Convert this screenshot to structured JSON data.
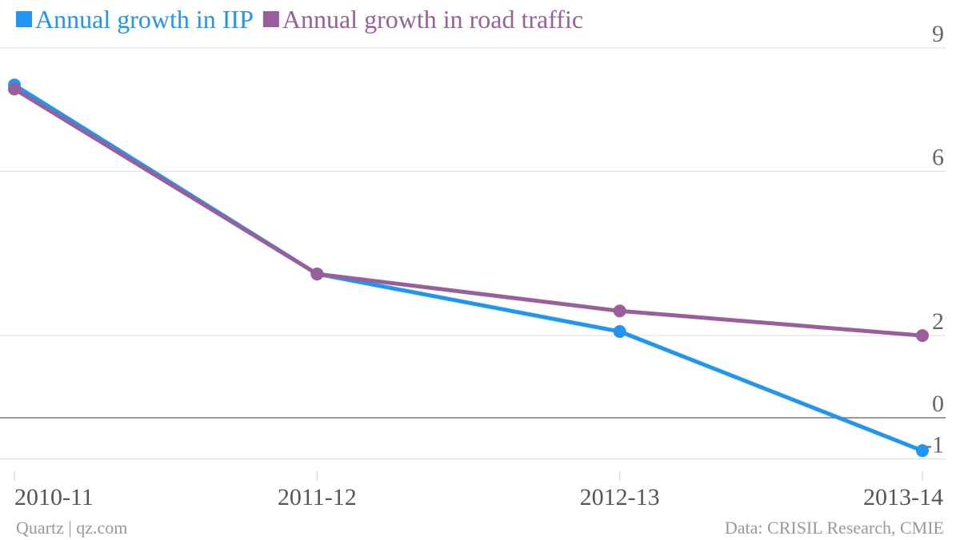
{
  "chart_data": {
    "type": "line",
    "categories": [
      "2010-11",
      "2011-12",
      "2012-13",
      "2013-14"
    ],
    "series": [
      {
        "name": "Annual growth in IIP",
        "color": "#2196f0",
        "values": [
          8.1,
          3.5,
          2.1,
          -0.8
        ]
      },
      {
        "name": "Annual growth in road traffic",
        "color": "#985f9c",
        "values": [
          8.0,
          3.5,
          2.6,
          2.0
        ]
      }
    ],
    "ylim": [
      -1.3,
      9.5
    ],
    "yticks": [
      9,
      6,
      2,
      0,
      -1
    ],
    "grid": true,
    "legend": "top-left",
    "source": "Data: CRISIL Research, CMIE",
    "credit": "Quartz | qz.com"
  }
}
